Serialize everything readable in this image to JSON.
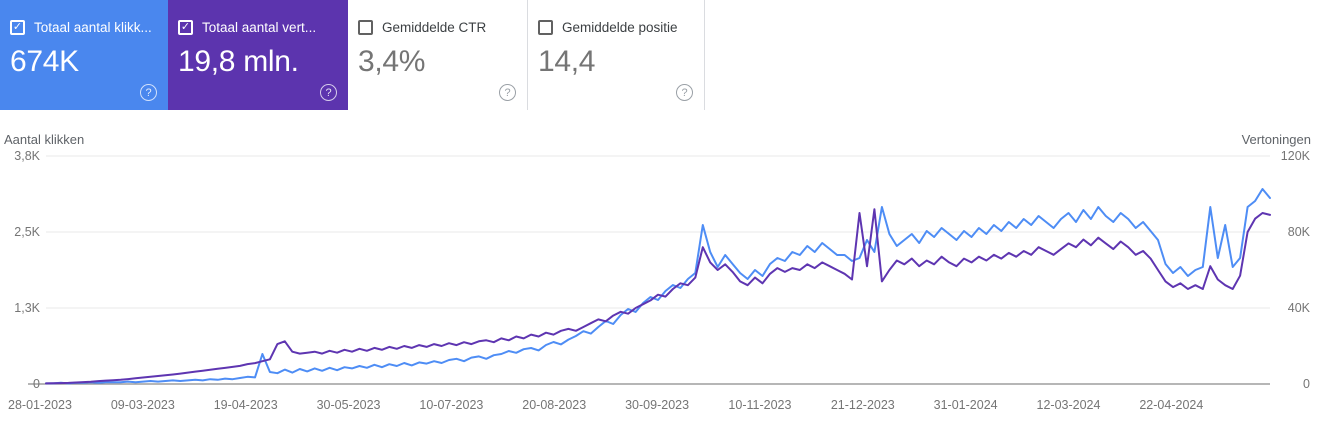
{
  "app": "Search Console prestatierapport",
  "colors": {
    "clicks_card_bg": "#4a87ee",
    "impressions_card_bg": "#5c34ae",
    "clicks_line": "#4e8df5",
    "impressions_line": "#5e35b1",
    "gridline": "#e8e8e8",
    "axis_line": "#8a8a8a",
    "tick_text": "#757575"
  },
  "cards": [
    {
      "label": "Totaal aantal klikk...",
      "value": "674K",
      "checked": true,
      "check_glyph": "✓"
    },
    {
      "label": "Totaal aantal vert...",
      "value": "19,8 mln.",
      "checked": true,
      "check_glyph": "✓"
    },
    {
      "label": "Gemiddelde CTR",
      "value": "3,4%",
      "checked": false,
      "check_glyph": ""
    },
    {
      "label": "Gemiddelde positie",
      "value": "14,4",
      "checked": false,
      "check_glyph": ""
    }
  ],
  "help_glyph": "?",
  "chart_data": {
    "type": "line",
    "title": "",
    "legend": "none",
    "grid": true,
    "y_left": {
      "label": "Aantal klikken",
      "ticks": [
        "3,8K",
        "2,5K",
        "1,3K",
        "0"
      ],
      "max": 3.8,
      "min": 0
    },
    "y_right": {
      "label": "Vertoningen",
      "ticks": [
        "120K",
        "80K",
        "40K",
        "0"
      ],
      "max": 120,
      "min": 0
    },
    "x_tick_labels": [
      "28-01-2023",
      "09-03-2023",
      "19-04-2023",
      "30-05-2023",
      "10-07-2023",
      "20-08-2023",
      "30-09-2023",
      "10-11-2023",
      "21-12-2023",
      "31-01-2024",
      "12-03-2024",
      "22-04-2024"
    ],
    "series": [
      {
        "name": "Totaal aantal klikken",
        "axis": "left",
        "unit": "K",
        "color": "#4e8df5",
        "values": [
          0.01,
          0.01,
          0.02,
          0.01,
          0.02,
          0.02,
          0.03,
          0.02,
          0.03,
          0.03,
          0.03,
          0.04,
          0.03,
          0.04,
          0.05,
          0.04,
          0.05,
          0.06,
          0.05,
          0.06,
          0.07,
          0.06,
          0.08,
          0.07,
          0.09,
          0.08,
          0.1,
          0.12,
          0.11,
          0.5,
          0.2,
          0.18,
          0.24,
          0.19,
          0.25,
          0.21,
          0.26,
          0.22,
          0.27,
          0.23,
          0.28,
          0.26,
          0.3,
          0.27,
          0.32,
          0.28,
          0.33,
          0.3,
          0.35,
          0.31,
          0.36,
          0.34,
          0.38,
          0.35,
          0.4,
          0.42,
          0.38,
          0.44,
          0.46,
          0.42,
          0.48,
          0.5,
          0.55,
          0.52,
          0.58,
          0.6,
          0.56,
          0.65,
          0.7,
          0.66,
          0.74,
          0.8,
          0.88,
          0.84,
          0.95,
          1.05,
          1.0,
          1.15,
          1.25,
          1.2,
          1.35,
          1.45,
          1.4,
          1.55,
          1.65,
          1.6,
          1.75,
          1.85,
          2.65,
          2.2,
          1.95,
          2.15,
          2.0,
          1.85,
          1.75,
          1.9,
          1.8,
          2.0,
          2.1,
          2.05,
          2.2,
          2.15,
          2.3,
          2.2,
          2.35,
          2.25,
          2.15,
          2.15,
          2.05,
          2.1,
          2.4,
          2.2,
          2.95,
          2.5,
          2.3,
          2.4,
          2.5,
          2.35,
          2.55,
          2.45,
          2.6,
          2.5,
          2.4,
          2.55,
          2.45,
          2.6,
          2.5,
          2.65,
          2.55,
          2.7,
          2.6,
          2.75,
          2.65,
          2.8,
          2.7,
          2.6,
          2.75,
          2.85,
          2.7,
          2.9,
          2.75,
          2.95,
          2.8,
          2.7,
          2.85,
          2.75,
          2.6,
          2.7,
          2.55,
          2.4,
          2.0,
          1.85,
          1.95,
          1.8,
          1.9,
          1.95,
          2.95,
          2.1,
          2.65,
          1.95,
          2.1,
          2.95,
          3.05,
          3.25,
          3.1
        ]
      },
      {
        "name": "Totaal aantal vertoningen",
        "axis": "right",
        "unit": "K",
        "color": "#5e35b1",
        "values": [
          0.3,
          0.4,
          0.5,
          0.6,
          0.8,
          1.0,
          1.2,
          1.5,
          1.8,
          2.0,
          2.2,
          2.6,
          3.0,
          3.4,
          3.8,
          4.2,
          4.6,
          5.0,
          5.5,
          6.0,
          6.5,
          7.0,
          7.5,
          8.0,
          8.5,
          9.0,
          9.5,
          10.5,
          11.0,
          12.0,
          13.0,
          21.0,
          22.5,
          17.0,
          16.0,
          16.5,
          17.0,
          16.0,
          17.5,
          16.5,
          18.0,
          17.0,
          18.5,
          17.5,
          19.0,
          18.0,
          19.5,
          18.5,
          20.0,
          19.0,
          20.5,
          19.5,
          21.0,
          20.0,
          21.5,
          20.5,
          22.0,
          21.0,
          22.5,
          23.0,
          22.0,
          24.0,
          23.0,
          25.0,
          24.0,
          26.0,
          25.0,
          27.0,
          26.0,
          28.0,
          29.0,
          28.0,
          30.0,
          32.0,
          34.0,
          33.0,
          36.0,
          38.0,
          37.0,
          40.0,
          42.0,
          44.0,
          47.0,
          46.0,
          50.0,
          53.0,
          52.0,
          56.0,
          72.0,
          64.0,
          60.0,
          63.0,
          59.0,
          54.0,
          52.0,
          56.0,
          53.0,
          58.0,
          61.0,
          59.0,
          61.0,
          60.0,
          63.0,
          61.0,
          64.0,
          62.0,
          60.0,
          58.0,
          55.0,
          90.0,
          62.0,
          92.0,
          54.0,
          60.0,
          65.0,
          63.0,
          66.0,
          62.0,
          65.0,
          63.0,
          67.0,
          64.0,
          62.0,
          66.0,
          64.0,
          67.0,
          65.0,
          68.0,
          66.0,
          69.0,
          67.0,
          70.0,
          68.0,
          72.0,
          70.0,
          68.0,
          71.0,
          74.0,
          72.0,
          76.0,
          73.0,
          77.0,
          74.0,
          71.0,
          75.0,
          72.0,
          68.0,
          70.0,
          66.0,
          60.0,
          54.0,
          51.0,
          53.0,
          50.0,
          52.0,
          50.0,
          62.0,
          55.0,
          52.0,
          50.0,
          57.0,
          80.0,
          87.0,
          90.0,
          89.0
        ]
      }
    ]
  }
}
